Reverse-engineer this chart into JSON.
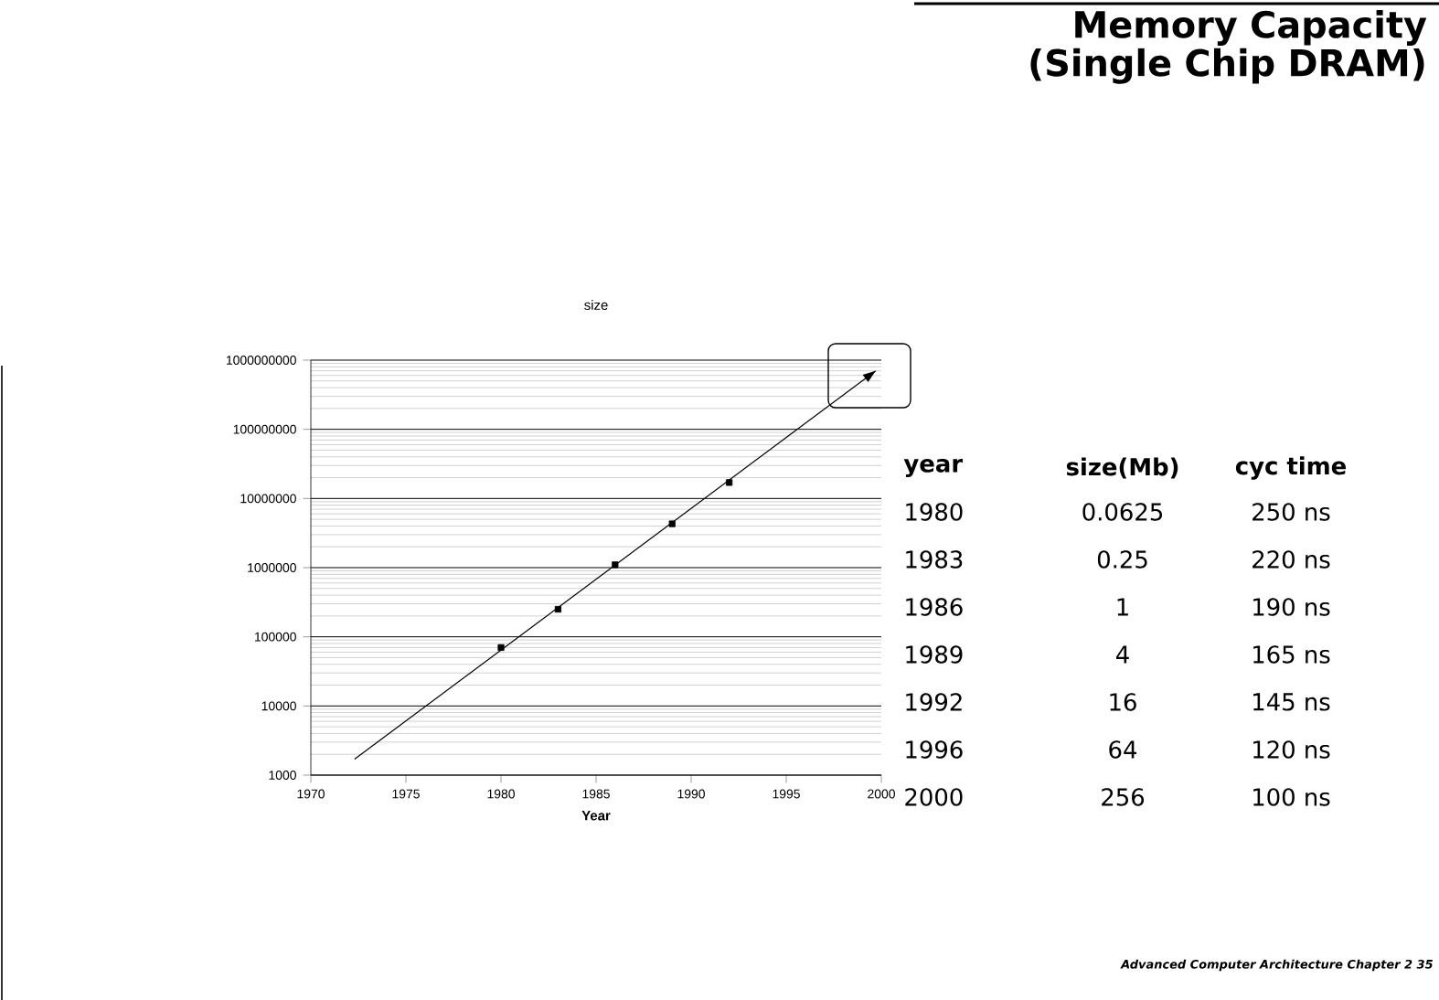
{
  "chart_data": {
    "type": "scatter",
    "title": "Memory Capacity (Single Chip DRAM)",
    "subtitle": "size",
    "xlabel": "Year",
    "log": "y",
    "grid": "y",
    "marker": "square",
    "xlim": [
      1970,
      2000
    ],
    "xticks": [
      1970,
      1975,
      1980,
      1985,
      1990,
      1995,
      2000
    ],
    "ylim": [
      1000,
      1000000000
    ],
    "yticks": [
      1000,
      10000,
      100000,
      1000000,
      10000000,
      100000000,
      1000000000
    ],
    "series": [
      {
        "color": "#000000",
        "x": [
          1980,
          1983,
          1986,
          1989,
          1992
        ],
        "values": [
          70000,
          250000,
          1100000,
          4300000,
          17000000
        ]
      },
      {
        "type": "line",
        "marker": "none",
        "color": "#000000",
        "x": [
          1972.3,
          1999.7
        ],
        "values": [
          1700,
          700000000
        ]
      }
    ],
    "annotations": [
      "year",
      "size(Mb)",
      "cyc time",
      "1980",
      "0.0625",
      "250 ns",
      "1983",
      "0.25",
      "220 ns",
      "1986",
      "1",
      "190 ns",
      "1989",
      "4",
      "165 ns",
      "1992",
      "16",
      "145 ns",
      "1996",
      "64",
      "120 ns",
      "2000",
      "256",
      "100 ns",
      "Advanced Computer Architecture Chapter 2 35"
    ]
  }
}
